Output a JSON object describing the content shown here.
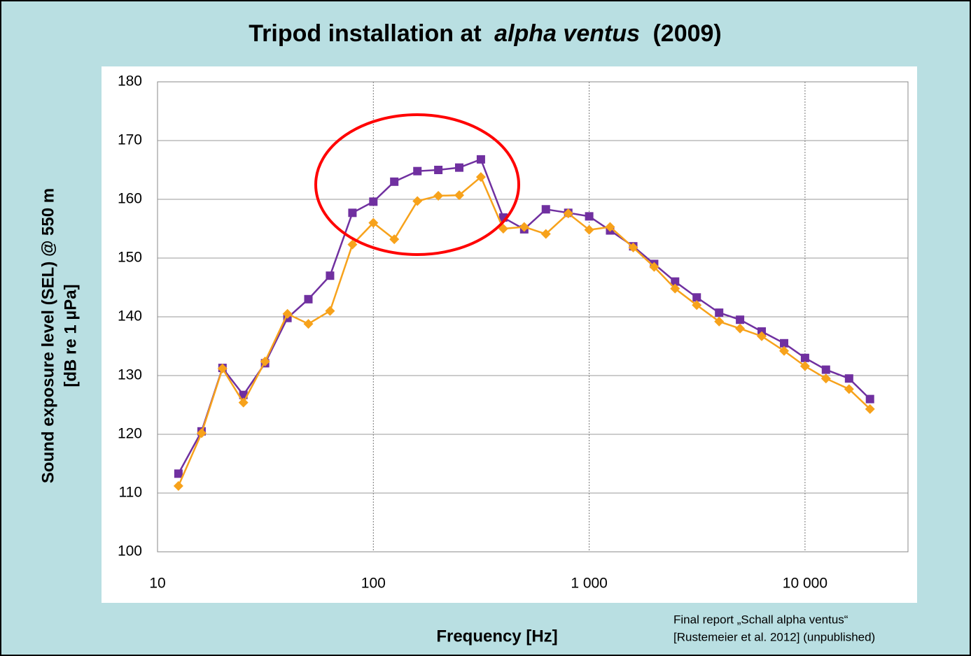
{
  "chart_data": {
    "type": "line",
    "title_parts": [
      "Tripod installation at",
      "alpha ventus",
      "(2009)"
    ],
    "x_label": "Frequency [Hz]",
    "y_label": [
      "Sound exposure level (SEL) @ 550 m",
      "[dB re 1 µPa]"
    ],
    "source": [
      "Final report „Schall alpha ventus“",
      "[Rustemeier et al. 2012] (unpublished)"
    ],
    "x": [
      12.5,
      16,
      20,
      25,
      31.5,
      40,
      50,
      63,
      80,
      100,
      125,
      160,
      200,
      250,
      315,
      400,
      500,
      630,
      800,
      1000,
      1250,
      1600,
      2000,
      2500,
      3150,
      4000,
      5000,
      6300,
      8000,
      10000,
      12500,
      16000,
      20000
    ],
    "series": [
      {
        "color": "#7030a0",
        "marker": "square",
        "values": [
          113.3,
          120.5,
          131.3,
          126.7,
          132.1,
          139.8,
          143.0,
          147.0,
          157.7,
          159.6,
          163.0,
          164.8,
          165.0,
          165.4,
          166.8,
          156.9,
          154.9,
          158.3,
          157.7,
          157.1,
          154.7,
          152.0,
          149.0,
          146.0,
          143.3,
          140.7,
          139.5,
          137.5,
          135.5,
          133.0,
          131.0,
          129.5,
          126.0
        ]
      },
      {
        "color": "#f7a21b",
        "marker": "diamond",
        "values": [
          111.2,
          120.2,
          131.2,
          125.4,
          132.4,
          140.5,
          138.8,
          141.0,
          152.3,
          156.0,
          153.2,
          159.7,
          160.6,
          160.7,
          163.8,
          155.0,
          155.3,
          154.1,
          157.6,
          154.8,
          155.3,
          151.8,
          148.5,
          144.8,
          142.0,
          139.2,
          138.0,
          136.7,
          134.2,
          131.6,
          129.5,
          127.7,
          124.3
        ]
      }
    ],
    "xlim": [
      10,
      30000
    ],
    "xlog": true,
    "xticks": [
      10,
      100,
      {
        "value": 1000,
        "label": "1 000"
      },
      {
        "value": 10000,
        "label": "10 000"
      }
    ],
    "ylim": [
      100,
      180
    ],
    "yticks": [
      100,
      110,
      120,
      130,
      140,
      150,
      160,
      170,
      180
    ],
    "grid": true
  }
}
